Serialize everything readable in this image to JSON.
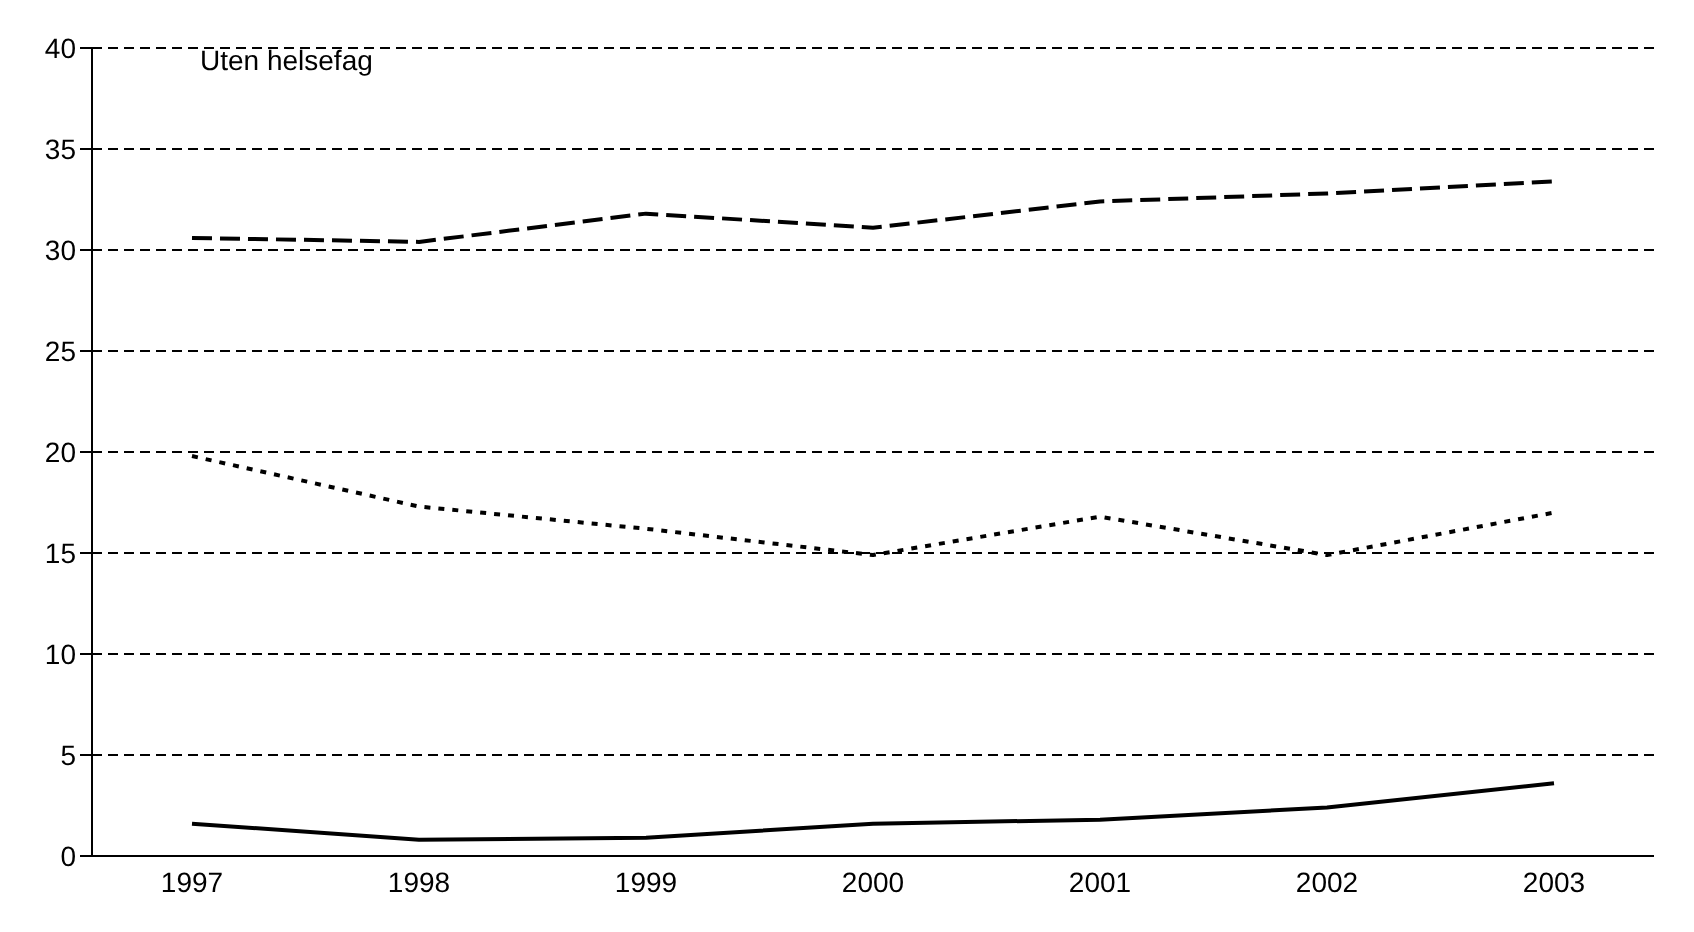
{
  "chart_data": {
    "type": "line",
    "categories": [
      "1997",
      "1998",
      "1999",
      "2000",
      "2001",
      "2002",
      "2003"
    ],
    "series": [
      {
        "color": "#000000",
        "line_style": "dashed",
        "values": [
          30.6,
          30.4,
          31.8,
          31.1,
          32.4,
          32.8,
          33.4
        ]
      },
      {
        "color": "#000000",
        "line_style": "dotted",
        "values": [
          19.8,
          17.3,
          16.2,
          14.9,
          16.8,
          14.9,
          17.0
        ]
      },
      {
        "color": "#000000",
        "line_style": "solid",
        "values": [
          1.6,
          0.8,
          0.9,
          1.6,
          1.8,
          2.4,
          3.6
        ]
      }
    ],
    "ylim": [
      0,
      40
    ],
    "yticks": [
      0,
      5,
      10,
      15,
      20,
      25,
      30,
      35,
      40
    ],
    "grid": "y",
    "marker": "none",
    "legend": false,
    "annotations": [
      "Uten helsefag"
    ]
  }
}
